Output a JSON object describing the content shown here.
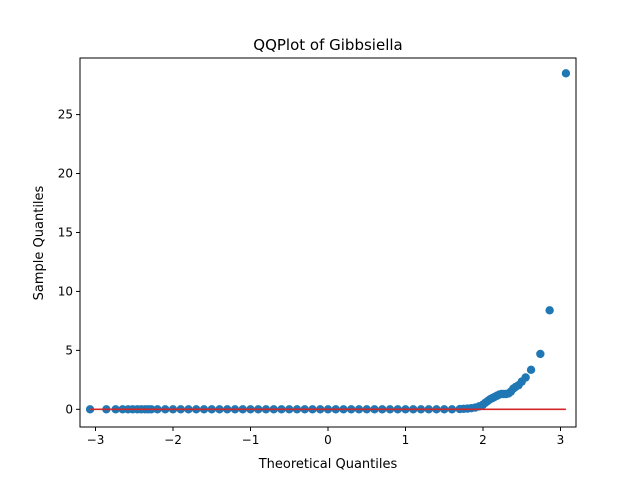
{
  "chart_data": {
    "type": "scatter",
    "title": "QQPlot of Gibbsiella",
    "xlabel": "Theoretical Quantiles",
    "ylabel": "Sample Quantiles",
    "xlim": [
      -3.2,
      3.2
    ],
    "ylim": [
      -1.5,
      29.8
    ],
    "xticks": [
      -3,
      -2,
      -1,
      0,
      1,
      2,
      3
    ],
    "yticks": [
      0,
      5,
      10,
      15,
      20,
      25
    ],
    "grid": false,
    "colors": {
      "points": "#1f77b4",
      "reference_line": "#d62728",
      "axes": "#000000"
    },
    "reference_line": {
      "x": [
        -3.07,
        3.07
      ],
      "y": [
        0,
        0
      ]
    },
    "series": [
      {
        "x": [
          -3.07,
          -2.86,
          -2.74,
          -2.65,
          -2.58,
          -2.52,
          -2.46,
          -2.41,
          -2.36,
          -2.32,
          -2.28,
          -2.2,
          -2.1,
          -2.0,
          -1.9,
          -1.8,
          -1.7,
          -1.6,
          -1.5,
          -1.4,
          -1.3,
          -1.2,
          -1.1,
          -1.0,
          -0.9,
          -0.8,
          -0.7,
          -0.6,
          -0.5,
          -0.4,
          -0.3,
          -0.2,
          -0.1,
          0.0,
          0.1,
          0.2,
          0.3,
          0.4,
          0.5,
          0.6,
          0.7,
          0.8,
          0.9,
          1.0,
          1.1,
          1.2,
          1.3,
          1.4,
          1.5,
          1.6,
          1.7,
          1.75,
          1.8,
          1.85,
          1.9,
          1.95,
          2.0,
          2.03,
          2.06,
          2.09,
          2.12,
          2.15,
          2.18,
          2.21,
          2.24,
          2.27,
          2.3,
          2.33,
          2.36,
          2.39,
          2.42,
          2.46,
          2.5,
          2.55,
          2.62,
          2.74,
          2.86,
          3.07
        ],
        "y": [
          0,
          0,
          0,
          0,
          0,
          0,
          0,
          0,
          0,
          0,
          0,
          0,
          0,
          0,
          0,
          0,
          0,
          0,
          0,
          0,
          0,
          0,
          0,
          0,
          0,
          0,
          0,
          0,
          0,
          0,
          0,
          0,
          0,
          0,
          0,
          0,
          0,
          0,
          0,
          0,
          0,
          0,
          0,
          0,
          0,
          0,
          0,
          0,
          0,
          0,
          0.02,
          0.04,
          0.06,
          0.1,
          0.15,
          0.25,
          0.4,
          0.55,
          0.7,
          0.85,
          0.95,
          1.05,
          1.15,
          1.25,
          1.3,
          1.3,
          1.3,
          1.35,
          1.5,
          1.75,
          1.9,
          2.05,
          2.35,
          2.7,
          3.35,
          4.7,
          8.4,
          28.5
        ]
      }
    ]
  }
}
